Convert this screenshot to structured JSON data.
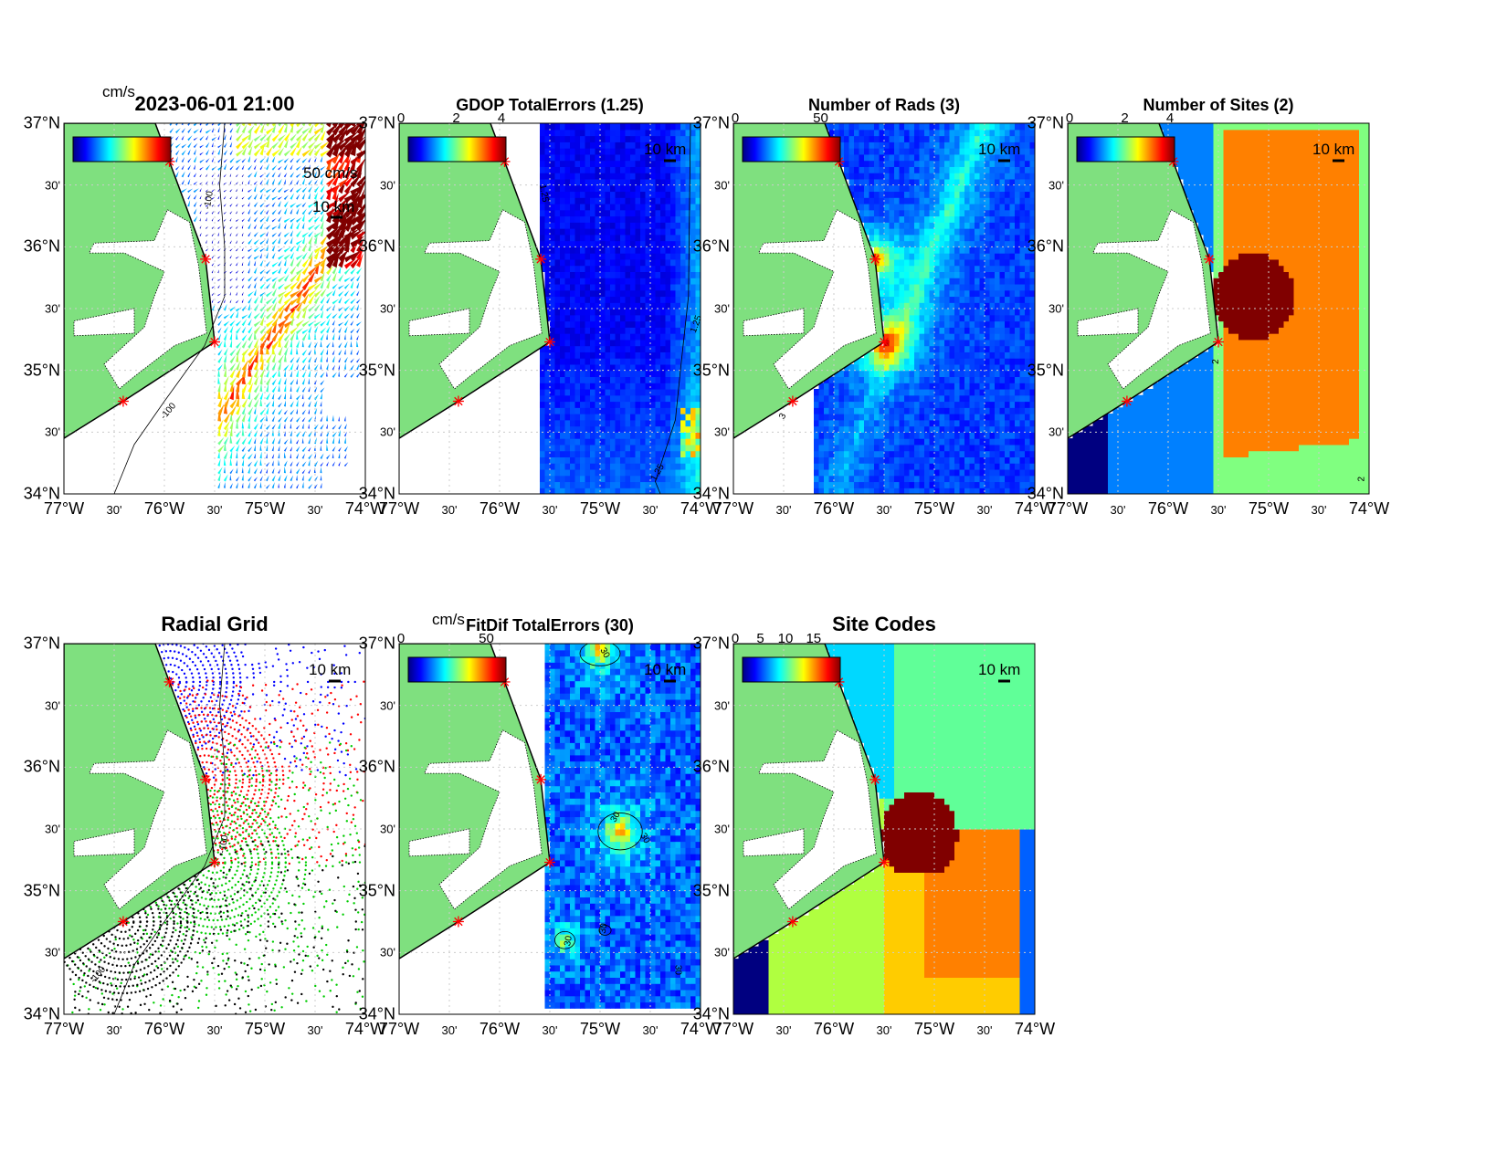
{
  "axes": {
    "lat_labels": [
      "37°N",
      "30'",
      "36°N",
      "30'",
      "35°N",
      "30'",
      "34°N"
    ],
    "lon_labels": [
      "77°W",
      "30'",
      "76°W",
      "30'",
      "75°W",
      "30'",
      "74°W"
    ],
    "lon_range": [
      -77,
      -74
    ],
    "lat_range": [
      34,
      37
    ]
  },
  "colors": {
    "land": "#7fe07f",
    "coast": "#000000",
    "site_marker": "#ff0000"
  },
  "sites": [
    {
      "lon": -75.95,
      "lat": 36.69
    },
    {
      "lon": -75.59,
      "lat": 35.9
    },
    {
      "lon": -75.5,
      "lat": 35.23
    },
    {
      "lon": -76.41,
      "lat": 34.75
    }
  ],
  "panels": [
    {
      "id": "totals",
      "title": "2023-06-01 21:00",
      "unit": "cm/s",
      "colorbar_ticks": [],
      "vector_scale_label": "50 cm/s",
      "scale_label": "10 km",
      "contour_labels": [
        "-100",
        "-100"
      ],
      "kind": "vectors"
    },
    {
      "id": "gdop",
      "title": "GDOP TotalErrors (1.25)",
      "colorbar_ticks": [
        "0",
        "2",
        "4"
      ],
      "scale_label": "10 km",
      "contour_labels": [
        "1.25",
        "1.25",
        "1.25"
      ],
      "kind": "gdop"
    },
    {
      "id": "nrads",
      "title": "Number of Rads (3)",
      "colorbar_ticks": [
        "0",
        "50"
      ],
      "scale_label": "10 km",
      "contour_labels": [
        "3"
      ],
      "kind": "nrads"
    },
    {
      "id": "nsites",
      "title": "Number of Sites (2)",
      "colorbar_ticks": [
        "0",
        "2",
        "4"
      ],
      "scale_label": "10 km",
      "contour_labels": [
        "2",
        "2"
      ],
      "kind": "nsites"
    },
    {
      "id": "radgrid",
      "title": "Radial Grid",
      "colorbar_ticks": [],
      "scale_label": "10 km",
      "contour_labels": [
        "-100",
        "-100"
      ],
      "kind": "radgrid"
    },
    {
      "id": "fitdif",
      "title": "FitDif TotalErrors (30)",
      "unit": "cm/s",
      "colorbar_ticks": [
        "0",
        "50"
      ],
      "scale_label": "10 km",
      "contour_labels": [
        "30",
        "30",
        "30",
        "30",
        "30",
        "30"
      ],
      "kind": "fitdif"
    },
    {
      "id": "sitecodes",
      "title": "Site Codes",
      "colorbar_ticks": [
        "0",
        "5",
        "10",
        "15"
      ],
      "scale_label": "10 km",
      "contour_labels": [],
      "kind": "sitecodes"
    }
  ]
}
